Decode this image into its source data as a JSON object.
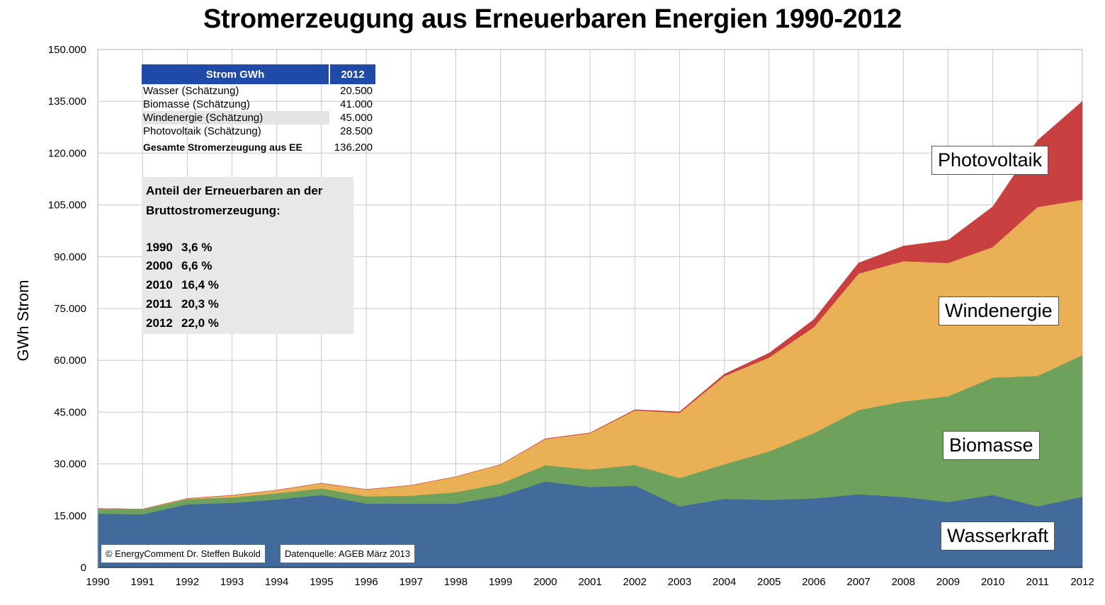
{
  "chart_data": {
    "type": "area",
    "title": "Stromerzeugung aus Erneuerbaren Energien 1990-2012",
    "ylabel": "GWh Strom",
    "xlabel": "",
    "ylim": [
      0,
      150000
    ],
    "yticks": [
      "0",
      "15.000",
      "30.000",
      "45.000",
      "60.000",
      "75.000",
      "90.000",
      "105.000",
      "120.000",
      "135.000",
      "150.000"
    ],
    "x": [
      "1990",
      "1991",
      "1992",
      "1993",
      "1994",
      "1995",
      "1996",
      "1997",
      "1998",
      "1999",
      "2000",
      "2001",
      "2002",
      "2003",
      "2004",
      "2005",
      "2006",
      "2007",
      "2008",
      "2009",
      "2010",
      "2011",
      "2012"
    ],
    "stacked": true,
    "grid": true,
    "series": [
      {
        "name": "Wasserkraft",
        "color": "#426b9c",
        "values": [
          15600,
          15400,
          18300,
          18700,
          19700,
          21000,
          18500,
          18500,
          18500,
          20700,
          24900,
          23300,
          23700,
          17700,
          19900,
          19600,
          20000,
          21200,
          20400,
          19000,
          21000,
          17700,
          20500
        ]
      },
      {
        "name": "Biomasse",
        "color": "#6ea25c",
        "values": [
          1400,
          1400,
          1500,
          1600,
          1800,
          1900,
          2100,
          2300,
          3300,
          3600,
          4700,
          5100,
          6000,
          8200,
          10000,
          14000,
          18900,
          24400,
          27700,
          30600,
          34000,
          37800,
          41000
        ]
      },
      {
        "name": "Windenergie",
        "color": "#eab056",
        "values": [
          100,
          100,
          200,
          600,
          900,
          1500,
          2000,
          3000,
          4500,
          5500,
          7600,
          10500,
          15800,
          18900,
          25500,
          27200,
          30700,
          39500,
          40600,
          38600,
          37800,
          48900,
          45000
        ]
      },
      {
        "name": "Photovoltaik",
        "color": "#c94040",
        "values": [
          0,
          0,
          0,
          0,
          0,
          0,
          0,
          0,
          0,
          0,
          100,
          100,
          200,
          300,
          600,
          1300,
          2200,
          3100,
          4400,
          6600,
          11700,
          19300,
          28500
        ]
      }
    ]
  },
  "table": {
    "header_name": "Strom  GWh",
    "header_year": "2012",
    "rows": [
      {
        "name": "Wasser (Schätzung)",
        "value": "20.500"
      },
      {
        "name": "Biomasse (Schätzung)",
        "value": "41.000"
      },
      {
        "name": "Windenergie (Schätzung)",
        "value": "45.000"
      },
      {
        "name": "Photovoltaik (Schätzung)",
        "value": "28.500"
      }
    ],
    "total_name": "Gesamte Stromerzeugung aus EE",
    "total_value": "136.200"
  },
  "share": {
    "title": "Anteil der Erneuerbaren an der Bruttostromerzeugung:",
    "rows": [
      {
        "year": "1990",
        "value": "3,6 %"
      },
      {
        "year": "2000",
        "value": "6,6 %"
      },
      {
        "year": "2010",
        "value": "16,4 %"
      },
      {
        "year": "2011",
        "value": "20,3 %"
      },
      {
        "year": "2012",
        "value": "22,0 %"
      }
    ]
  },
  "credits": {
    "copyright": "© EnergyComment Dr. Steffen Bukold",
    "source": "Datenquelle: AGEB März 2013"
  }
}
